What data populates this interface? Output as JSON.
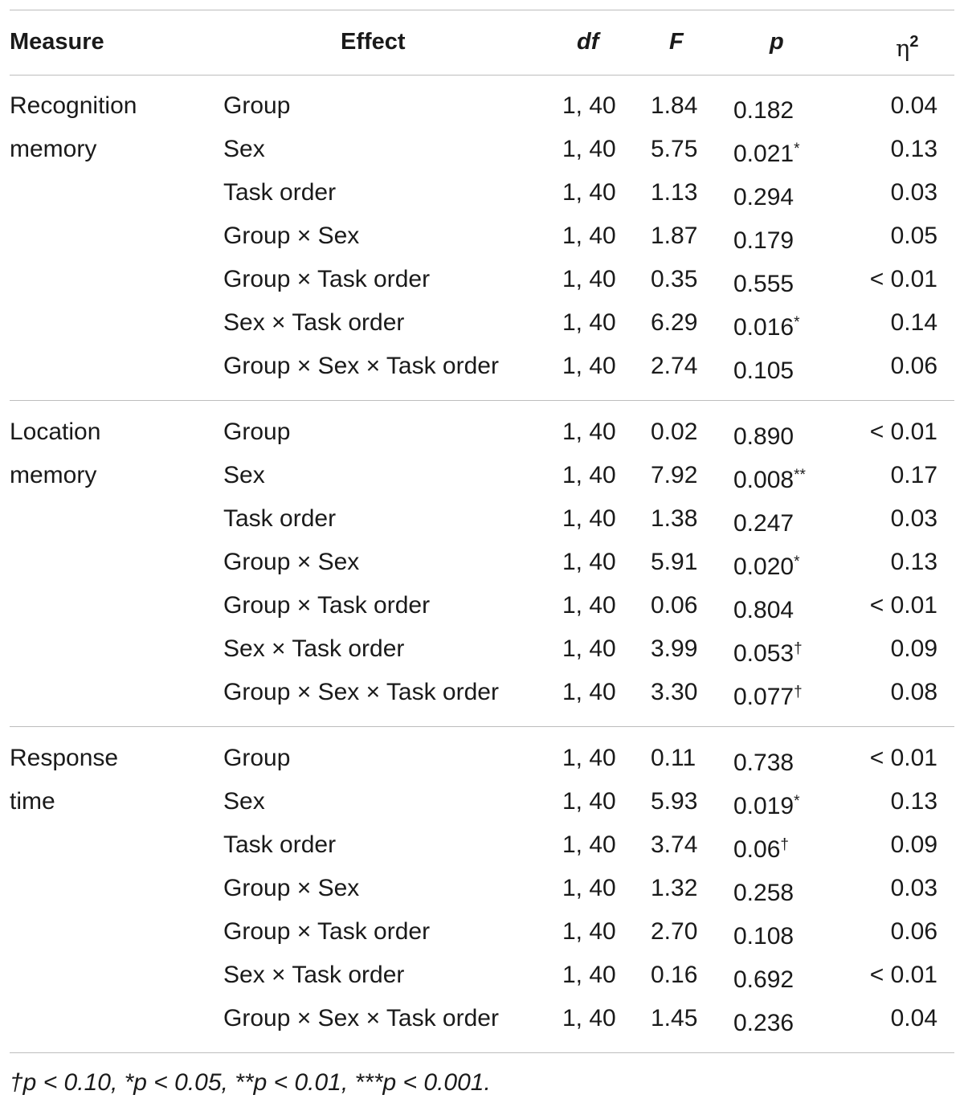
{
  "headers": {
    "measure": "Measure",
    "effect": "Effect",
    "df": "df",
    "f": "F",
    "p": "p",
    "eta": "η",
    "eta_sup": "2"
  },
  "groups": [
    {
      "measure": "Recognition\nmemory",
      "rows": [
        {
          "effect": "Group",
          "df": "1, 40",
          "f": "1.84",
          "p": "0.182",
          "mark": "",
          "eta": "0.04"
        },
        {
          "effect": "Sex",
          "df": "1, 40",
          "f": "5.75",
          "p": "0.021",
          "mark": "*",
          "eta": "0.13"
        },
        {
          "effect": "Task order",
          "df": "1, 40",
          "f": "1.13",
          "p": "0.294",
          "mark": "",
          "eta": "0.03"
        },
        {
          "effect": "Group × Sex",
          "df": "1, 40",
          "f": "1.87",
          "p": "0.179",
          "mark": "",
          "eta": "0.05"
        },
        {
          "effect": "Group × Task order",
          "df": "1, 40",
          "f": "0.35",
          "p": "0.555",
          "mark": "",
          "eta": "< 0.01"
        },
        {
          "effect": "Sex × Task order",
          "df": "1, 40",
          "f": "6.29",
          "p": "0.016",
          "mark": "*",
          "eta": "0.14"
        },
        {
          "effect": "Group × Sex × Task order",
          "df": "1, 40",
          "f": "2.74",
          "p": "0.105",
          "mark": "",
          "eta": "0.06"
        }
      ]
    },
    {
      "measure": "Location\nmemory",
      "rows": [
        {
          "effect": "Group",
          "df": "1, 40",
          "f": "0.02",
          "p": "0.890",
          "mark": "",
          "eta": "< 0.01"
        },
        {
          "effect": "Sex",
          "df": "1, 40",
          "f": "7.92",
          "p": "0.008",
          "mark": "**",
          "eta": "0.17"
        },
        {
          "effect": "Task order",
          "df": "1, 40",
          "f": "1.38",
          "p": "0.247",
          "mark": "",
          "eta": "0.03"
        },
        {
          "effect": "Group × Sex",
          "df": "1, 40",
          "f": "5.91",
          "p": "0.020",
          "mark": "*",
          "eta": "0.13"
        },
        {
          "effect": "Group × Task order",
          "df": "1, 40",
          "f": "0.06",
          "p": "0.804",
          "mark": "",
          "eta": "< 0.01"
        },
        {
          "effect": "Sex × Task order",
          "df": "1, 40",
          "f": "3.99",
          "p": "0.053",
          "mark": "†",
          "eta": "0.09"
        },
        {
          "effect": "Group × Sex × Task order",
          "df": "1, 40",
          "f": "3.30",
          "p": "0.077",
          "mark": "†",
          "eta": "0.08"
        }
      ]
    },
    {
      "measure": "Response\ntime",
      "rows": [
        {
          "effect": "Group",
          "df": "1, 40",
          "f": "0.11",
          "p": "0.738",
          "mark": "",
          "eta": "< 0.01"
        },
        {
          "effect": "Sex",
          "df": "1, 40",
          "f": "5.93",
          "p": "0.019",
          "mark": "*",
          "eta": "0.13"
        },
        {
          "effect": "Task order",
          "df": "1, 40",
          "f": "3.74",
          "p": "0.06",
          "mark": "†",
          "eta": "0.09"
        },
        {
          "effect": "Group × Sex",
          "df": "1, 40",
          "f": "1.32",
          "p": "0.258",
          "mark": "",
          "eta": "0.03"
        },
        {
          "effect": "Group × Task order",
          "df": "1, 40",
          "f": "2.70",
          "p": "0.108",
          "mark": "",
          "eta": "0.06"
        },
        {
          "effect": "Sex × Task order",
          "df": "1, 40",
          "f": "0.16",
          "p": "0.692",
          "mark": "",
          "eta": "< 0.01"
        },
        {
          "effect": "Group × Sex × Task order",
          "df": "1, 40",
          "f": "1.45",
          "p": "0.236",
          "mark": "",
          "eta": "0.04"
        }
      ]
    }
  ],
  "footnote": "†p < 0.10, *p < 0.05, **p < 0.01, ***p < 0.001."
}
